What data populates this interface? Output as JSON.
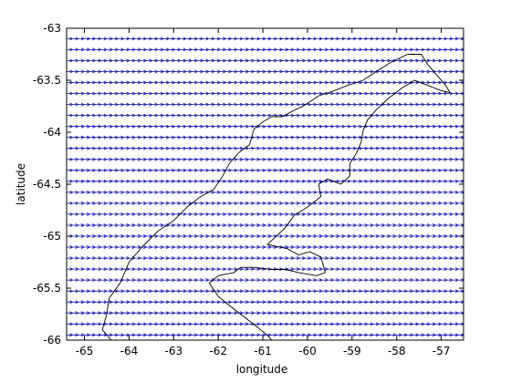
{
  "chart_data": {
    "type": "vector-field map",
    "title": "",
    "xlabel": "longitude",
    "ylabel": "latitude",
    "xlim": [
      -65.4,
      -56.5
    ],
    "ylim": [
      -66,
      -63
    ],
    "xticks": [
      -65,
      -64,
      -63,
      -62,
      -61,
      -60,
      -59,
      -58,
      -57
    ],
    "xtick_labels": [
      "-65",
      "-64",
      "-63",
      "-62",
      "-61",
      "-60",
      "-59",
      "-58",
      "-57"
    ],
    "yticks": [
      -63,
      -63.5,
      -64,
      -64.5,
      -65,
      -65.5,
      -66
    ],
    "ytick_labels": [
      "-63",
      "-63.5",
      "-64",
      "-64.5",
      "-65",
      "-65.5",
      "-66"
    ],
    "grid": false,
    "legend": "none",
    "series": [
      {
        "kind": "quiver",
        "color": "#1010b0",
        "direction": "eastward",
        "lon_range": [
          -65.4,
          -56.5
        ],
        "lat_range": [
          -63.1,
          -65.95
        ],
        "n_rows": 28,
        "n_cols": 70
      },
      {
        "kind": "coastline",
        "color": "#000000",
        "peninsula_coast": [
          [
            -64.4,
            -66
          ],
          [
            -64.6,
            -65.9
          ],
          [
            -64.5,
            -65.75
          ],
          [
            -64.45,
            -65.6
          ],
          [
            -64.2,
            -65.45
          ],
          [
            -64.0,
            -65.25
          ],
          [
            -63.7,
            -65.1
          ],
          [
            -63.35,
            -64.95
          ],
          [
            -63.0,
            -64.85
          ],
          [
            -62.7,
            -64.72
          ],
          [
            -62.4,
            -64.62
          ],
          [
            -62.1,
            -64.55
          ],
          [
            -61.9,
            -64.42
          ],
          [
            -61.75,
            -64.3
          ],
          [
            -61.55,
            -64.2
          ],
          [
            -61.3,
            -64.12
          ],
          [
            -61.2,
            -63.97
          ],
          [
            -61.0,
            -63.9
          ],
          [
            -60.8,
            -63.85
          ],
          [
            -60.55,
            -63.85
          ],
          [
            -60.35,
            -63.8
          ],
          [
            -60.1,
            -63.75
          ],
          [
            -59.75,
            -63.65
          ],
          [
            -59.4,
            -63.6
          ],
          [
            -59.1,
            -63.55
          ],
          [
            -58.75,
            -63.5
          ],
          [
            -58.4,
            -63.4
          ],
          [
            -58.1,
            -63.32
          ],
          [
            -57.75,
            -63.25
          ],
          [
            -57.45,
            -63.25
          ],
          [
            -57.3,
            -63.35
          ],
          [
            -57.1,
            -63.45
          ],
          [
            -56.9,
            -63.55
          ],
          [
            -56.8,
            -63.62
          ]
        ],
        "east_coast": [
          [
            -56.8,
            -63.62
          ],
          [
            -57.0,
            -63.6
          ],
          [
            -57.3,
            -63.55
          ],
          [
            -57.6,
            -63.5
          ],
          [
            -57.9,
            -63.58
          ],
          [
            -58.2,
            -63.68
          ],
          [
            -58.45,
            -63.78
          ],
          [
            -58.65,
            -63.88
          ],
          [
            -58.75,
            -63.98
          ],
          [
            -58.8,
            -64.1
          ],
          [
            -58.9,
            -64.2
          ],
          [
            -59.05,
            -64.3
          ],
          [
            -59.05,
            -64.42
          ],
          [
            -59.25,
            -64.5
          ],
          [
            -59.55,
            -64.45
          ],
          [
            -59.75,
            -64.5
          ],
          [
            -59.7,
            -64.62
          ],
          [
            -60.0,
            -64.72
          ],
          [
            -60.3,
            -64.8
          ],
          [
            -60.5,
            -64.92
          ],
          [
            -60.75,
            -65.02
          ],
          [
            -60.9,
            -65.08
          ],
          [
            -60.45,
            -65.12
          ],
          [
            -60.2,
            -65.18
          ],
          [
            -59.95,
            -65.15
          ],
          [
            -59.7,
            -65.2
          ],
          [
            -59.6,
            -65.35
          ],
          [
            -59.8,
            -65.38
          ],
          [
            -60.2,
            -65.35
          ],
          [
            -60.5,
            -65.32
          ],
          [
            -60.8,
            -65.32
          ],
          [
            -61.2,
            -65.3
          ],
          [
            -61.5,
            -65.3
          ],
          [
            -61.65,
            -65.35
          ],
          [
            -62.0,
            -65.38
          ],
          [
            -62.2,
            -65.45
          ],
          [
            -62.0,
            -65.58
          ],
          [
            -61.8,
            -65.65
          ],
          [
            -61.5,
            -65.75
          ],
          [
            -61.2,
            -65.85
          ],
          [
            -60.9,
            -65.95
          ],
          [
            -60.8,
            -66
          ]
        ]
      }
    ]
  }
}
